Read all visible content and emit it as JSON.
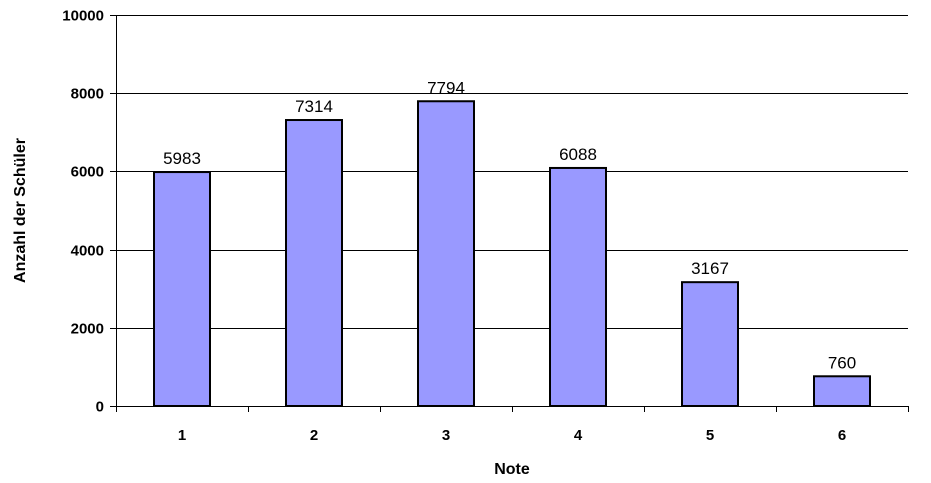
{
  "chart_data": {
    "type": "bar",
    "title": "",
    "xlabel": "Note",
    "ylabel": "Anzahl der Schüler",
    "categories": [
      "1",
      "2",
      "3",
      "4",
      "5",
      "6"
    ],
    "values": [
      5983,
      7314,
      7794,
      6088,
      3167,
      760
    ],
    "data_labels": [
      "5983",
      "7314",
      "7794",
      "6088",
      "3167",
      "760"
    ],
    "ylim": [
      0,
      10000
    ],
    "yticks": [
      0,
      2000,
      4000,
      6000,
      8000,
      10000
    ],
    "ytick_labels": [
      "0",
      "2000",
      "4000",
      "6000",
      "8000",
      "10000"
    ],
    "grid": true,
    "legend": "none",
    "colors": {
      "bar_fill": "#9999ff",
      "bar_stroke": "#000000",
      "grid": "#000000",
      "axis": "#000000"
    }
  }
}
